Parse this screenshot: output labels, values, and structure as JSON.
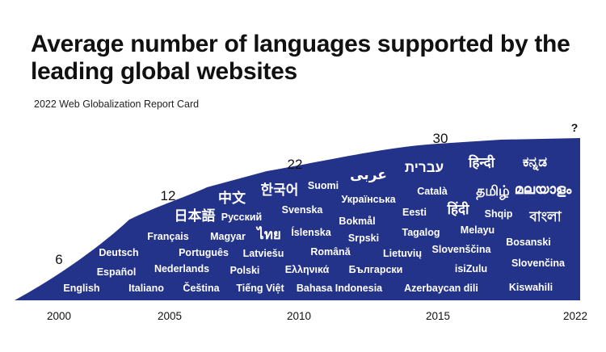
{
  "chart_data": {
    "type": "area",
    "title": "Average number of languages supported by the leading global websites",
    "subtitle": "2022 Web Globalization Report Card",
    "x": [
      2000,
      2005,
      2010,
      2015,
      2022
    ],
    "series": [
      {
        "values": [
          6,
          12,
          22,
          30,
          null
        ],
        "labels": [
          "6",
          "12",
          "22",
          "30",
          "?"
        ]
      }
    ],
    "xticks": [
      "2000",
      "2005",
      "2010",
      "2015",
      "2022"
    ],
    "color": "#24338a",
    "languages": [
      "English",
      "Español",
      "Deutsch",
      "Français",
      "Italiano",
      "Nederlands",
      "Português",
      "Magyar",
      "Čeština",
      "Polski",
      "日本語",
      "Русский",
      "中文",
      "Latviešu",
      "ไทย",
      "Tiếng Việt",
      "Ελληνικά",
      "한국어",
      "Svenska",
      "Íslenska",
      "Suomi",
      "Română",
      "Bahasa Indonesia",
      "Українська",
      "Bokmål",
      "Srpski",
      "Български",
      "عربى",
      "עברית",
      "Lietuvių",
      "Eesti",
      "Tagalog",
      "Català",
      "Azerbaycan dili",
      "हिन्दी",
      "Slovenščina",
      "हिंदी",
      "Melayu",
      "isiZulu",
      "தமிழ்",
      "Shqip",
      "Bosanski",
      "ಕನ್ನಡ",
      "മലയാളം",
      "বাংলা",
      "Slovenčina",
      "Kiswahili"
    ]
  }
}
